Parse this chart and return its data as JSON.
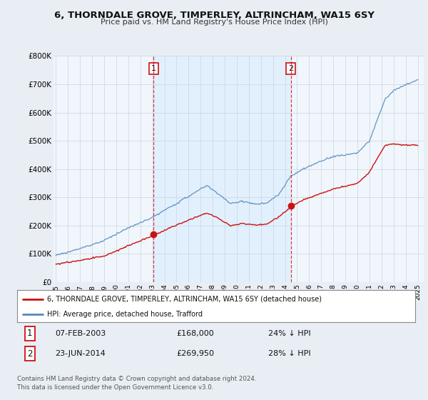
{
  "title": "6, THORNDALE GROVE, TIMPERLEY, ALTRINCHAM, WA15 6SY",
  "subtitle": "Price paid vs. HM Land Registry's House Price Index (HPI)",
  "ylim": [
    0,
    800000
  ],
  "xlim_start": 1994.8,
  "xlim_end": 2025.5,
  "yticks": [
    0,
    100000,
    200000,
    300000,
    400000,
    500000,
    600000,
    700000,
    800000
  ],
  "ytick_labels": [
    "£0",
    "£100K",
    "£200K",
    "£300K",
    "£400K",
    "£500K",
    "£600K",
    "£700K",
    "£800K"
  ],
  "hpi_color": "#5588bb",
  "price_color": "#cc1111",
  "shade_color": "#ddeeff",
  "marker1_date": 2003.1,
  "marker1_price": 168000,
  "marker1_label": "07-FEB-2003",
  "marker1_value_label": "£168,000",
  "marker1_pct_label": "24% ↓ HPI",
  "marker2_date": 2014.47,
  "marker2_price": 269950,
  "marker2_label": "23-JUN-2014",
  "marker2_value_label": "£269,950",
  "marker2_pct_label": "28% ↓ HPI",
  "legend_line1": "6, THORNDALE GROVE, TIMPERLEY, ALTRINCHAM, WA15 6SY (detached house)",
  "legend_line2": "HPI: Average price, detached house, Trafford",
  "footer": "Contains HM Land Registry data © Crown copyright and database right 2024.\nThis data is licensed under the Open Government Licence v3.0.",
  "background_color": "#e8eef4",
  "plot_bg_color": "#f0f6fc",
  "grid_color": "#c8d4e0"
}
